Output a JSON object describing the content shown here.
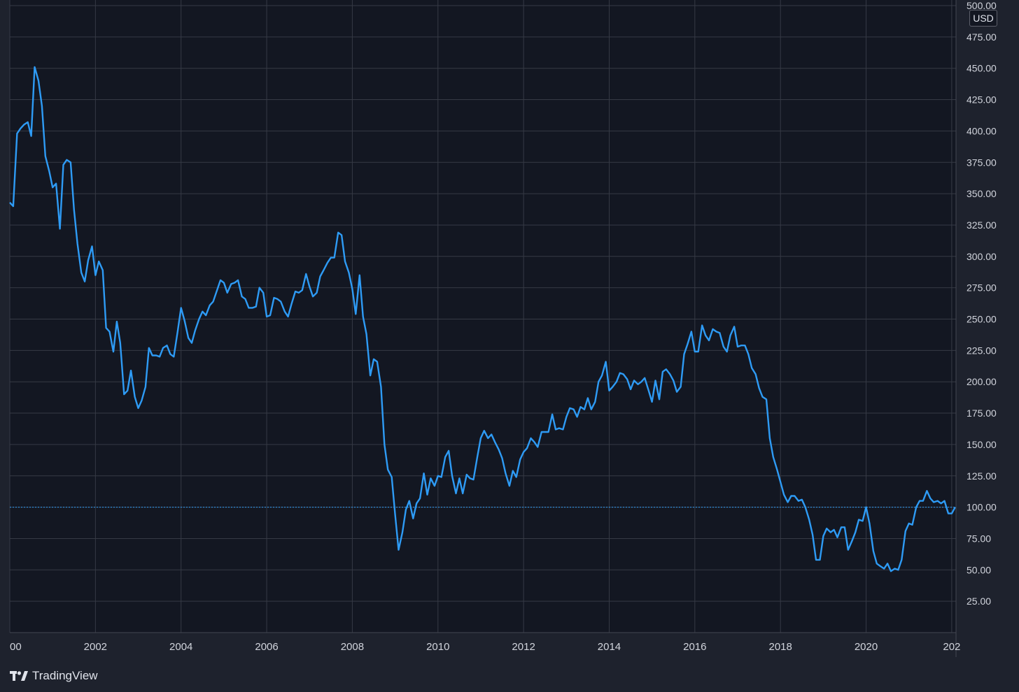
{
  "watermark": {
    "brand": "TradingView",
    "icon": "tradingview-logo-icon"
  },
  "colors": {
    "background": "#131722",
    "frame": "#1e222d",
    "grid": "#363a45",
    "line": "#2e9bf5",
    "text": "#d1d4dc"
  },
  "chart_data": {
    "type": "line",
    "currency": "USD",
    "ylim": [
      0,
      500
    ],
    "xlim": [
      2000.0,
      2022.1
    ],
    "y_ticks": [
      "25.00",
      "50.00",
      "75.00",
      "100.00",
      "125.00",
      "150.00",
      "175.00",
      "200.00",
      "225.00",
      "250.00",
      "275.00",
      "300.00",
      "325.00",
      "350.00",
      "375.00",
      "400.00",
      "425.00",
      "450.00",
      "475.00",
      "500.00"
    ],
    "x_ticks": [
      "00",
      "2002",
      "2004",
      "2006",
      "2008",
      "2010",
      "2012",
      "2014",
      "2016",
      "2018",
      "2020",
      "202"
    ],
    "price_line": 100,
    "grid": true,
    "series": [
      {
        "x": [
          2000.0,
          2000.08,
          2000.17,
          2000.25,
          2000.33,
          2000.42,
          2000.5,
          2000.58,
          2000.67,
          2000.75,
          2000.83,
          2000.92,
          2001.0,
          2001.08,
          2001.17,
          2001.25,
          2001.33,
          2001.42,
          2001.5,
          2001.58,
          2001.67,
          2001.75,
          2001.83,
          2001.92,
          2002.0,
          2002.08,
          2002.17,
          2002.25,
          2002.33,
          2002.42,
          2002.5,
          2002.58,
          2002.67,
          2002.75,
          2002.83,
          2002.92,
          2003.0,
          2003.08,
          2003.17,
          2003.25,
          2003.33,
          2003.42,
          2003.5,
          2003.58,
          2003.67,
          2003.75,
          2003.83,
          2003.92,
          2004.0,
          2004.08,
          2004.17,
          2004.25,
          2004.33,
          2004.42,
          2004.5,
          2004.58,
          2004.67,
          2004.75,
          2004.83,
          2004.92,
          2005.0,
          2005.08,
          2005.17,
          2005.25,
          2005.33,
          2005.42,
          2005.5,
          2005.58,
          2005.67,
          2005.75,
          2005.83,
          2005.92,
          2006.0,
          2006.08,
          2006.17,
          2006.25,
          2006.33,
          2006.42,
          2006.5,
          2006.58,
          2006.67,
          2006.75,
          2006.83,
          2006.92,
          2007.0,
          2007.08,
          2007.17,
          2007.25,
          2007.33,
          2007.42,
          2007.5,
          2007.58,
          2007.67,
          2007.75,
          2007.83,
          2007.92,
          2008.0,
          2008.08,
          2008.17,
          2008.25,
          2008.33,
          2008.42,
          2008.5,
          2008.58,
          2008.67,
          2008.75,
          2008.83,
          2008.92,
          2009.0,
          2009.08,
          2009.17,
          2009.25,
          2009.33,
          2009.42,
          2009.5,
          2009.58,
          2009.67,
          2009.75,
          2009.83,
          2009.92,
          2010.0,
          2010.08,
          2010.17,
          2010.25,
          2010.33,
          2010.42,
          2010.5,
          2010.58,
          2010.67,
          2010.75,
          2010.83,
          2010.92,
          2011.0,
          2011.08,
          2011.17,
          2011.25,
          2011.33,
          2011.42,
          2011.5,
          2011.58,
          2011.67,
          2011.75,
          2011.83,
          2011.92,
          2012.0,
          2012.08,
          2012.17,
          2012.25,
          2012.33,
          2012.42,
          2012.5,
          2012.58,
          2012.67,
          2012.75,
          2012.83,
          2012.92,
          2013.0,
          2013.08,
          2013.17,
          2013.25,
          2013.33,
          2013.42,
          2013.5,
          2013.58,
          2013.67,
          2013.75,
          2013.83,
          2013.92,
          2014.0,
          2014.08,
          2014.17,
          2014.25,
          2014.33,
          2014.42,
          2014.5,
          2014.58,
          2014.67,
          2014.75,
          2014.83,
          2014.92,
          2015.0,
          2015.08,
          2015.17,
          2015.25,
          2015.33,
          2015.42,
          2015.5,
          2015.58,
          2015.67,
          2015.75,
          2015.83,
          2015.92,
          2016.0,
          2016.08,
          2016.17,
          2016.25,
          2016.33,
          2016.42,
          2016.5,
          2016.58,
          2016.67,
          2016.75,
          2016.83,
          2016.92,
          2017.0,
          2017.08,
          2017.17,
          2017.25,
          2017.33,
          2017.42,
          2017.5,
          2017.58,
          2017.67,
          2017.75,
          2017.83,
          2017.92,
          2018.0,
          2018.08,
          2018.17,
          2018.25,
          2018.33,
          2018.42,
          2018.5,
          2018.58,
          2018.67,
          2018.75,
          2018.83,
          2018.92,
          2019.0,
          2019.08,
          2019.17,
          2019.25,
          2019.33,
          2019.42,
          2019.5,
          2019.58,
          2019.67,
          2019.75,
          2019.83,
          2019.92,
          2020.0,
          2020.08,
          2020.17,
          2020.25,
          2020.33,
          2020.42,
          2020.5,
          2020.58,
          2020.67,
          2020.75,
          2020.83,
          2020.92,
          2021.0,
          2021.08,
          2021.17,
          2021.25,
          2021.33,
          2021.42,
          2021.5,
          2021.58,
          2021.67,
          2021.75,
          2021.83,
          2021.92,
          2022.0,
          2022.08
        ],
        "values": [
          343,
          340,
          398,
          402,
          405,
          407,
          396,
          451,
          440,
          420,
          380,
          368,
          355,
          358,
          322,
          373,
          377,
          375,
          337,
          310,
          287,
          280,
          297,
          308,
          285,
          296,
          289,
          243,
          240,
          224,
          248,
          231,
          190,
          193,
          209,
          188,
          179,
          185,
          196,
          227,
          221,
          221,
          220,
          227,
          229,
          222,
          220,
          240,
          259,
          249,
          235,
          231,
          241,
          250,
          256,
          253,
          261,
          264,
          272,
          281,
          279,
          271,
          278,
          279,
          281,
          268,
          266,
          259,
          259,
          260,
          275,
          271,
          252,
          253,
          267,
          266,
          264,
          256,
          252,
          262,
          272,
          271,
          273,
          286,
          276,
          268,
          271,
          284,
          289,
          295,
          299,
          299,
          319,
          317,
          296,
          287,
          274,
          254,
          285,
          252,
          238,
          205,
          218,
          216,
          196,
          150,
          130,
          124,
          94,
          66,
          80,
          98,
          105,
          91,
          103,
          107,
          127,
          110,
          123,
          117,
          125,
          124,
          140,
          145,
          125,
          111,
          123,
          111,
          126,
          123,
          122,
          140,
          155,
          161,
          155,
          158,
          152,
          146,
          139,
          127,
          117,
          129,
          124,
          138,
          144,
          147,
          155,
          152,
          148,
          160,
          160,
          160,
          174,
          162,
          163,
          162,
          172,
          179,
          178,
          172,
          180,
          178,
          187,
          178,
          184,
          200,
          205,
          216,
          193,
          196,
          200,
          207,
          206,
          202,
          194,
          201,
          198,
          200,
          203,
          193,
          184,
          201,
          186,
          208,
          210,
          206,
          201,
          192,
          196,
          222,
          230,
          240,
          224,
          224,
          245,
          237,
          233,
          242,
          240,
          239,
          228,
          224,
          237,
          244,
          228,
          229,
          229,
          222,
          211,
          206,
          195,
          188,
          186,
          155,
          140,
          130,
          120,
          110,
          104,
          109,
          109,
          105,
          106,
          100,
          90,
          78,
          58,
          58,
          77,
          83,
          80,
          82,
          76,
          84,
          84,
          66,
          73,
          80,
          90,
          89,
          100,
          87,
          65,
          55,
          53,
          51,
          55,
          49,
          51,
          50,
          58,
          81,
          87,
          86,
          100,
          105,
          105,
          113,
          107,
          104,
          105,
          103,
          105,
          95,
          95,
          100
        ]
      }
    ]
  }
}
